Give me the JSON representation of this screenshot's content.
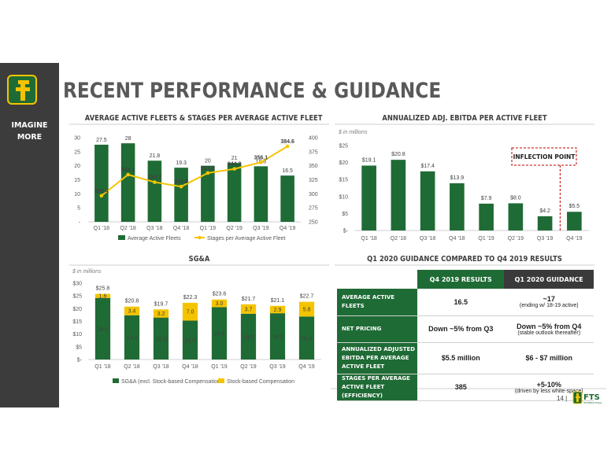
{
  "header": {
    "title": "RECENT PERFORMANCE & GUIDANCE",
    "tagline_line1": "IMAGINE",
    "tagline_line2": "MORE"
  },
  "footer": {
    "page_number": "14 |",
    "logo_text": "FTS",
    "logo_subtext": "INTERNATIONAL"
  },
  "colors": {
    "green": "#1f6b35",
    "yellow": "#f5c400",
    "sidebar": "#3c3c3c",
    "dashed_red": "#c00000"
  },
  "chart_data": [
    {
      "title": "AVERAGE ACTIVE FLEETS & STAGES PER AVERAGE ACTIVE FLEET",
      "type": "bar",
      "categories": [
        "Q1 '18",
        "Q2 '18",
        "Q3 '18",
        "Q4 '18",
        "Q1 '19",
        "Q2 '19",
        "Q3 '19",
        "Q4 '19"
      ],
      "series": [
        {
          "name": "Average Active Fleets",
          "type": "bar",
          "axis": "left",
          "color": "#1f6b35",
          "values": [
            27.5,
            28.0,
            21.8,
            19.3,
            20.0,
            21.0,
            19.8,
            16.5
          ]
        },
        {
          "name": "Stages per Average Active Fleet",
          "type": "line",
          "axis": "right",
          "color": "#f5c400",
          "values": [
            296.4,
            334.1,
            320.7,
            312.8,
            337.0,
            344.3,
            356.1,
            384.6
          ]
        }
      ],
      "left_ticks": [
        "30",
        "25",
        "20",
        "15",
        "10",
        "5",
        "-"
      ],
      "right_ticks": [
        "400",
        "375",
        "350",
        "325",
        "300",
        "275",
        "250"
      ],
      "ylim_left": [
        0,
        30
      ],
      "ylim_right": [
        250,
        400
      ],
      "legend": "bottom"
    },
    {
      "title": "ANNUALIZED ADJ. EBITDA PER ACTIVE FLEET",
      "type": "bar",
      "unit": "$ in millions",
      "categories": [
        "Q1 '18",
        "Q2 '18",
        "Q3 '18",
        "Q4 '18",
        "Q1 '19",
        "Q2 '19",
        "Q3 '19",
        "Q4 '19"
      ],
      "values": [
        19.1,
        20.8,
        17.4,
        13.9,
        7.9,
        8.0,
        4.2,
        5.5
      ],
      "labels": [
        "$19.1",
        "$20.8",
        "$17.4",
        "$13.9",
        "$7.9",
        "$8.0",
        "$4.2",
        "$5.5"
      ],
      "y_ticks": [
        "$25",
        "$20",
        "$15",
        "$10",
        "$5",
        "$-"
      ],
      "ylim": [
        0,
        25
      ],
      "annotation": "INFLECTION POINT"
    },
    {
      "title": "SG&A",
      "type": "bar",
      "stacked": true,
      "unit": "$ in millions",
      "categories": [
        "Q1 '18",
        "Q2 '18",
        "Q3 '18",
        "Q4 '18",
        "Q1 '19",
        "Q2 '19",
        "Q3 '19",
        "Q4 '19"
      ],
      "series": [
        {
          "name": "SG&A (excl. Stock-based Compensation",
          "color": "#1f6b35",
          "values": [
            24.2,
            17.4,
            16.5,
            15.3,
            20.6,
            18.0,
            18.2,
            16.9
          ]
        },
        {
          "name": "Stock-based Compensation",
          "color": "#f5c400",
          "values": [
            1.6,
            3.4,
            3.2,
            7.0,
            3.0,
            3.7,
            2.9,
            5.8
          ]
        }
      ],
      "totals": [
        "$25.8",
        "$20.8",
        "$19.7",
        "$22.3",
        "$23.6",
        "$21.7",
        "$21.1",
        "$22.7"
      ],
      "y_ticks": [
        "$30",
        "$25",
        "$20",
        "$15",
        "$10",
        "$5",
        "$-"
      ],
      "ylim": [
        0,
        30
      ],
      "legend": "bottom"
    }
  ],
  "guidance": {
    "title": "Q1 2020 GUIDANCE COMPARED TO Q4 2019 RESULTS",
    "col1": "Q4 2019 RESULTS",
    "col2": "Q1 2020 GUIDANCE",
    "rows": [
      {
        "label": "AVERAGE ACTIVE FLEETS",
        "r_main": "16.5",
        "r_sub": "",
        "g_main": "~17",
        "g_sub": "(ending w/ 18-19 active)"
      },
      {
        "label": "NET PRICING",
        "r_main": "Down ~5% from Q3",
        "r_sub": "",
        "g_main": "Down ~5% from Q4",
        "g_sub": "(stable outlook thereafter)"
      },
      {
        "label": "ANNUALIZED ADJUSTED EBITDA PER AVERAGE ACTIVE FLEET",
        "r_main": "$5.5 million",
        "r_sub": "",
        "g_main": "$6 - $7 million",
        "g_sub": ""
      },
      {
        "label": "STAGES PER AVERAGE ACTIVE FLEET (EFFICIENCY)",
        "r_main": "385",
        "r_sub": "",
        "g_main": "+5-10%",
        "g_sub": "(driven by less white-space)"
      }
    ]
  }
}
